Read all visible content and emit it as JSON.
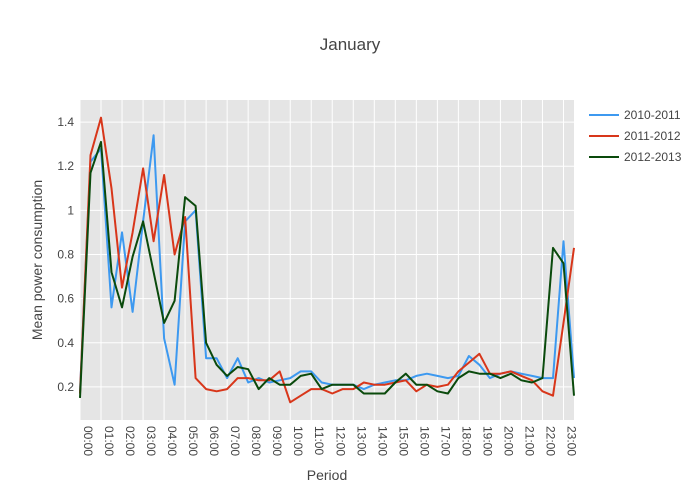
{
  "chart_data": {
    "type": "line",
    "title": "January",
    "xlabel": "Period",
    "ylabel": "Mean power consumption",
    "ylim": [
      0.05,
      1.5
    ],
    "yticks": [
      0.2,
      0.4,
      0.6,
      0.8,
      1,
      1.2,
      1.4
    ],
    "ytick_labels": [
      "0.2",
      "0.4",
      "0.6",
      "0.8",
      "1",
      "1.2",
      "1.4"
    ],
    "x": [
      "00:00",
      "00:30",
      "01:00",
      "01:30",
      "02:00",
      "02:30",
      "03:00",
      "03:30",
      "04:00",
      "04:30",
      "05:00",
      "05:30",
      "06:00",
      "06:30",
      "07:00",
      "07:30",
      "08:00",
      "08:30",
      "09:00",
      "09:30",
      "10:00",
      "10:30",
      "11:00",
      "11:30",
      "12:00",
      "12:30",
      "13:00",
      "13:30",
      "14:00",
      "14:30",
      "15:00",
      "15:30",
      "16:00",
      "16:30",
      "17:00",
      "17:30",
      "18:00",
      "18:30",
      "19:00",
      "19:30",
      "20:00",
      "20:30",
      "21:00",
      "21:30",
      "22:00",
      "22:30",
      "23:00",
      "23:30"
    ],
    "xtick_labels": [
      "00:00",
      "01:00",
      "02:00",
      "03:00",
      "04:00",
      "05:00",
      "06:00",
      "07:00",
      "08:00",
      "09:00",
      "10:00",
      "11:00",
      "12:00",
      "13:00",
      "14:00",
      "15:00",
      "16:00",
      "17:00",
      "18:00",
      "19:00",
      "20:00",
      "21:00",
      "22:00",
      "23:00"
    ],
    "grid": true,
    "legend_position": "top-right",
    "series": [
      {
        "name": "2010-2011",
        "color": "#3d99f0",
        "values": [
          0.18,
          1.22,
          1.28,
          0.56,
          0.9,
          0.54,
          0.95,
          1.34,
          0.42,
          0.21,
          0.95,
          1.0,
          0.33,
          0.33,
          0.24,
          0.33,
          0.22,
          0.24,
          0.22,
          0.23,
          0.24,
          0.27,
          0.27,
          0.22,
          0.21,
          0.21,
          0.21,
          0.19,
          0.21,
          0.22,
          0.23,
          0.23,
          0.25,
          0.26,
          0.25,
          0.24,
          0.25,
          0.34,
          0.3,
          0.24,
          0.26,
          0.27,
          0.26,
          0.25,
          0.24,
          0.24,
          0.86,
          0.24
        ]
      },
      {
        "name": "2011-2012",
        "color": "#d8361a",
        "values": [
          0.17,
          1.25,
          1.42,
          1.1,
          0.65,
          0.9,
          1.19,
          0.86,
          1.16,
          0.8,
          0.97,
          0.24,
          0.19,
          0.18,
          0.19,
          0.24,
          0.24,
          0.23,
          0.23,
          0.27,
          0.13,
          0.16,
          0.19,
          0.19,
          0.17,
          0.19,
          0.19,
          0.22,
          0.21,
          0.21,
          0.22,
          0.23,
          0.18,
          0.21,
          0.2,
          0.21,
          0.27,
          0.31,
          0.35,
          0.26,
          0.26,
          0.27,
          0.25,
          0.23,
          0.18,
          0.16,
          0.49,
          0.83
        ]
      },
      {
        "name": "2012-2013",
        "color": "#0a4a0c",
        "values": [
          0.15,
          1.17,
          1.31,
          0.72,
          0.56,
          0.79,
          0.95,
          0.72,
          0.49,
          0.59,
          1.06,
          1.02,
          0.4,
          0.3,
          0.25,
          0.29,
          0.28,
          0.19,
          0.24,
          0.21,
          0.21,
          0.25,
          0.26,
          0.19,
          0.21,
          0.21,
          0.21,
          0.17,
          0.17,
          0.17,
          0.22,
          0.26,
          0.21,
          0.21,
          0.18,
          0.17,
          0.24,
          0.27,
          0.26,
          0.26,
          0.24,
          0.26,
          0.23,
          0.22,
          0.24,
          0.83,
          0.76,
          0.16
        ]
      }
    ]
  }
}
